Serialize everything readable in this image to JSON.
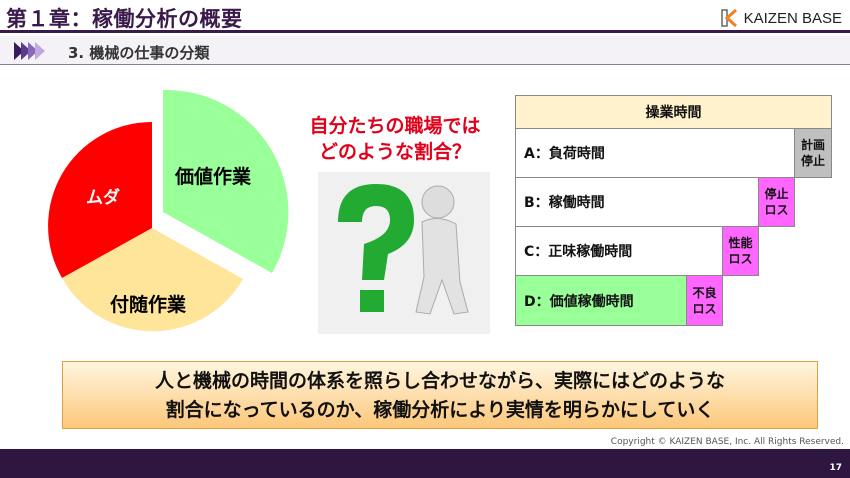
{
  "header": {
    "title": "第１章：稼働分析の概要",
    "logo_text": "KAIZEN BASE"
  },
  "section": {
    "title": "3. 機械の仕事の分類"
  },
  "pie": {
    "slices": [
      {
        "label": "価値作業",
        "color": "#99ff99"
      },
      {
        "label": "付随作業",
        "color": "#ffe599"
      },
      {
        "label": "ムダ",
        "color": "#ff0000"
      }
    ]
  },
  "question": {
    "line1": "自分たちの職場では",
    "line2": "どのような割合？"
  },
  "table": {
    "header": "操業時間",
    "rows": [
      {
        "label": "A：負荷時間",
        "loss": "計画停止"
      },
      {
        "label": "B：稼働時間",
        "loss": "停止ロス"
      },
      {
        "label": "C：正味稼働時間",
        "loss": "性能ロス"
      },
      {
        "label": "D：価値稼働時間",
        "loss": "不良ロス"
      }
    ]
  },
  "banner": {
    "line1": "人と機械の時間の体系を照らし合わせながら、実際にはどのような",
    "line2": "割合になっているのか、稼働分析により実情を明らかにしていく"
  },
  "footer": {
    "copyright": "Copyright ©  KAIZEN BASE, Inc. All Rights Reserved.",
    "page": "17"
  }
}
